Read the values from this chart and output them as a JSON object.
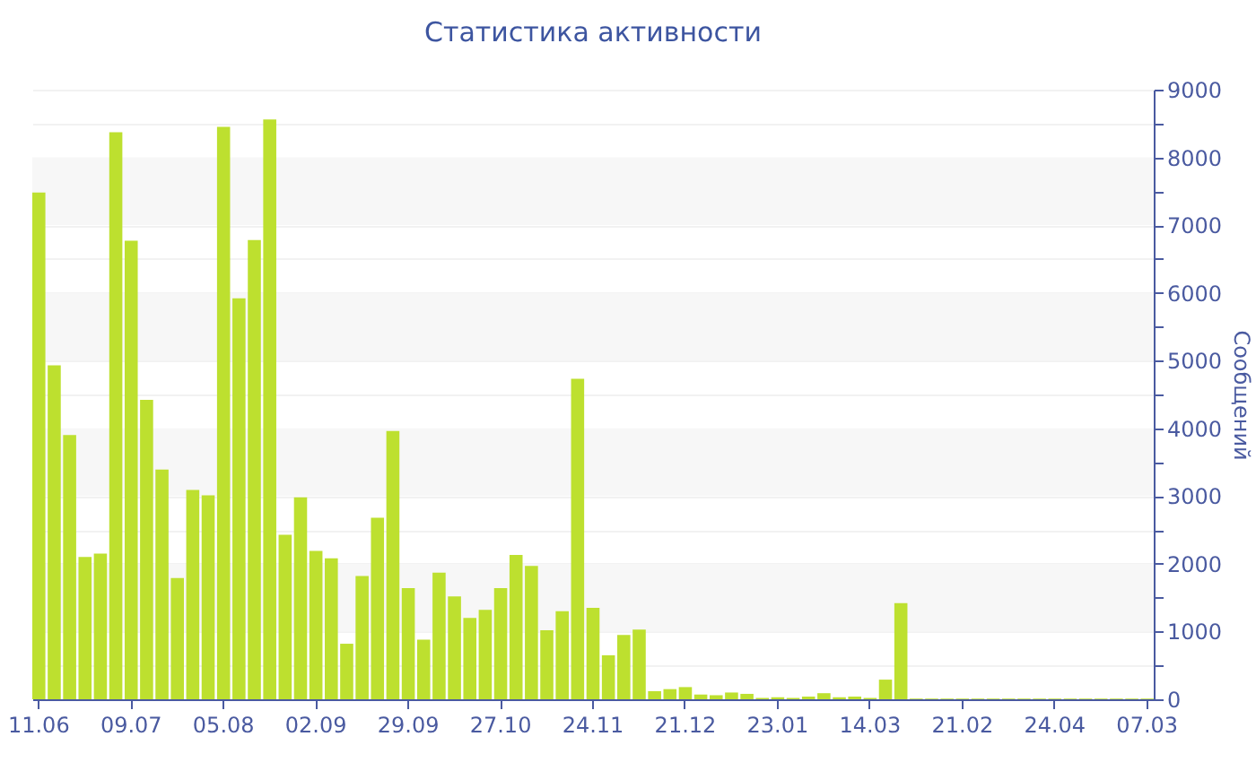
{
  "chart_data": {
    "type": "bar",
    "title": "Статистика активности",
    "y2label": "Сообщений",
    "categories": [
      "11.06",
      null,
      null,
      null,
      null,
      null,
      "09.07",
      null,
      null,
      null,
      null,
      null,
      "05.08",
      null,
      null,
      null,
      null,
      null,
      "02.09",
      null,
      null,
      null,
      null,
      null,
      "29.09",
      null,
      null,
      null,
      null,
      null,
      "27.10",
      null,
      null,
      null,
      null,
      null,
      "24.11",
      null,
      null,
      null,
      null,
      null,
      "21.12",
      null,
      null,
      null,
      null,
      null,
      "23.01",
      null,
      null,
      null,
      null,
      null,
      "14.03",
      null,
      null,
      null,
      null,
      null,
      "21.02",
      null,
      null,
      null,
      null,
      null,
      "24.04",
      null,
      null,
      null,
      null,
      null,
      "07.03"
    ],
    "series": [
      {
        "axis": "y2",
        "color": "#bde02f",
        "values": [
          7480,
          4930,
          3900,
          2100,
          2150,
          8370,
          6770,
          4420,
          3390,
          1790,
          3090,
          3010,
          8450,
          5920,
          6780,
          8560,
          2430,
          2980,
          2190,
          2080,
          820,
          1820,
          2680,
          3960,
          1640,
          880,
          1870,
          1520,
          1200,
          1320,
          1640,
          2130,
          1970,
          1020,
          1300,
          4730,
          1350,
          650,
          950,
          1030,
          120,
          150,
          180,
          70,
          60,
          100,
          80,
          20,
          30,
          20,
          40,
          90,
          30,
          40,
          20,
          290,
          1420,
          10,
          10,
          10,
          10,
          10,
          10,
          10,
          10,
          10,
          10,
          10,
          10,
          10,
          10,
          10,
          10
        ]
      }
    ],
    "y2lim": [
      0,
      9000
    ],
    "y2ticks": [
      0,
      {
        "value": 500,
        "label": null
      },
      1000,
      {
        "value": 1500,
        "label": null
      },
      2000,
      {
        "value": 2500,
        "label": null
      },
      3000,
      {
        "value": 3500,
        "label": null
      },
      4000,
      {
        "value": 4500,
        "label": null
      },
      5000,
      {
        "value": 5500,
        "label": null
      },
      6000,
      {
        "value": 6500,
        "label": null
      },
      7000,
      {
        "value": 7500,
        "label": null
      },
      8000,
      {
        "value": 8500,
        "label": null
      },
      9000
    ],
    "grid": "y"
  }
}
